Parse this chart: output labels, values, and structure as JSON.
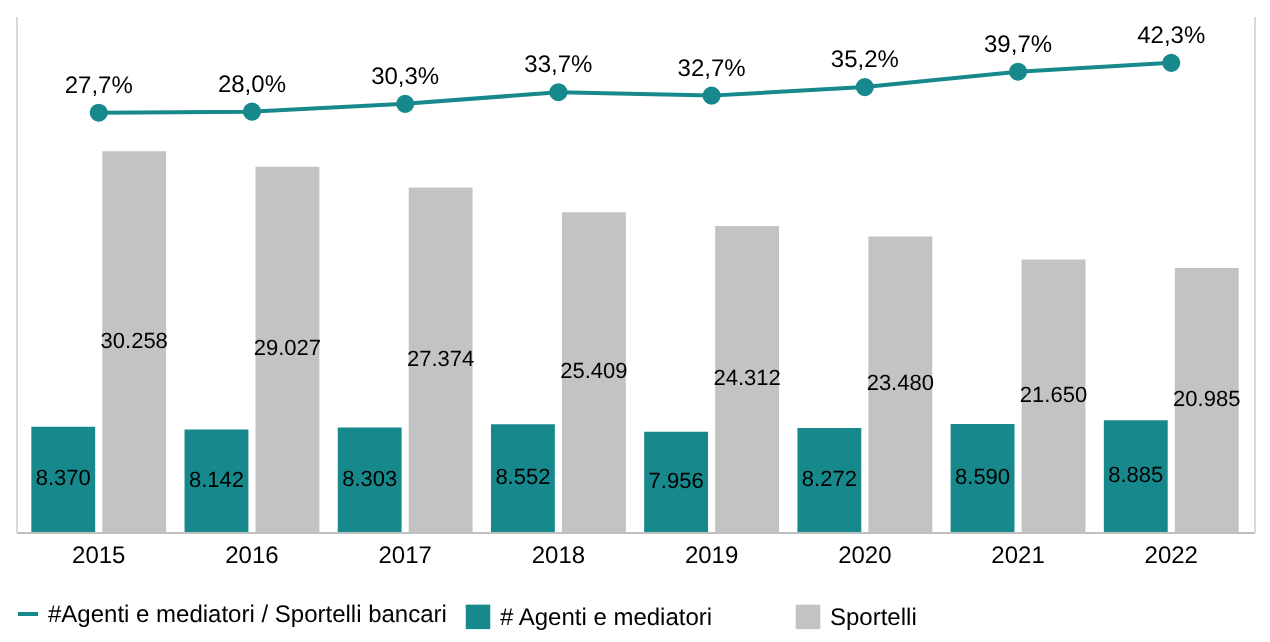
{
  "chart_data": {
    "type": "bar",
    "categories": [
      "2015",
      "2016",
      "2017",
      "2018",
      "2019",
      "2020",
      "2021",
      "2022"
    ],
    "ylim": [
      0,
      41000
    ],
    "y2lim": [
      -95,
      56
    ],
    "tick_labels": "x",
    "legend": "bottom",
    "grid": false,
    "series": [
      {
        "name": "# Agenti e mediatori",
        "color": "#17888c",
        "values": [
          8370,
          8142,
          8303,
          8552,
          7956,
          8272,
          8590,
          8885
        ],
        "value_labels": [
          "8.370",
          "8.142",
          "8.303",
          "8.552",
          "7.956",
          "8.272",
          "8.590",
          "8.885"
        ]
      },
      {
        "name": "Sportelli",
        "color": "#c3c3c3",
        "values": [
          30258,
          29027,
          27374,
          25409,
          24312,
          23480,
          21650,
          20985
        ],
        "value_labels": [
          "30.258",
          "29.027",
          "27.374",
          "25.409",
          "24.312",
          "23.480",
          "21.650",
          "20.985"
        ]
      },
      {
        "name": "#Agenti e mediatori / Sportelli bancari",
        "type": "line",
        "axis": "y2",
        "marker": "circle",
        "line_style": "solid",
        "color": "#17888c",
        "values": [
          27.7,
          28.0,
          30.3,
          33.7,
          32.7,
          35.2,
          39.7,
          42.3
        ],
        "value_labels": [
          "27,7%",
          "28,0%",
          "30,3%",
          "33,7%",
          "32,7%",
          "35,2%",
          "39,7%",
          "42,3%"
        ]
      }
    ]
  }
}
